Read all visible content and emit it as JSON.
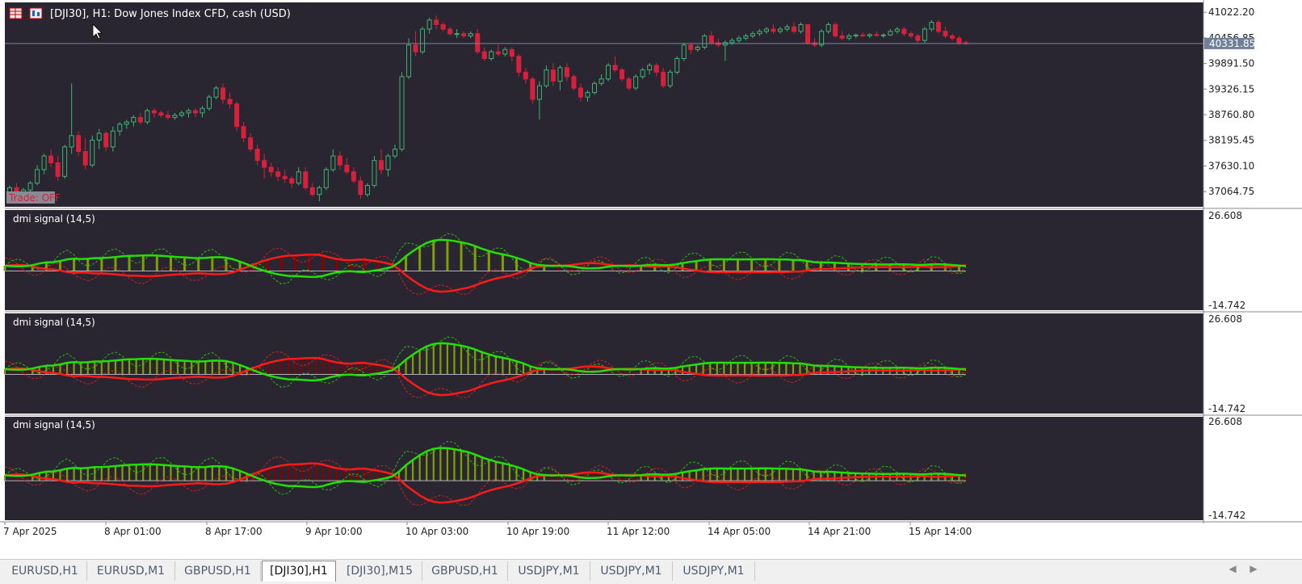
{
  "window": {
    "symbol_title": "[DJI30], H1:  Dow Jones Index CFD, cash (USD)",
    "trade_label": "Trade: OFF"
  },
  "main_chart": {
    "price_axis": [
      "41022.20",
      "40456.85",
      "39891.50",
      "39326.15",
      "38760.80",
      "38195.45",
      "37630.10",
      "37064.75"
    ],
    "current_price": "40331.85",
    "price_min": 36800,
    "price_max": 41150,
    "candles": [
      [
        36950,
        37200,
        36900,
        37150
      ],
      [
        37150,
        37250,
        36800,
        36900
      ],
      [
        36900,
        37150,
        36850,
        37100
      ],
      [
        37100,
        37300,
        37000,
        37250
      ],
      [
        37250,
        37650,
        37200,
        37550
      ],
      [
        37550,
        37900,
        37450,
        37850
      ],
      [
        37850,
        38000,
        37600,
        37700
      ],
      [
        37700,
        37850,
        37300,
        37400
      ],
      [
        37400,
        38100,
        37350,
        38050
      ],
      [
        38050,
        39450,
        37900,
        38300
      ],
      [
        38300,
        38400,
        37850,
        37950
      ],
      [
        37950,
        38250,
        37550,
        37650
      ],
      [
        37650,
        38300,
        37600,
        38200
      ],
      [
        38200,
        38450,
        38000,
        38350
      ],
      [
        38350,
        38400,
        37950,
        38050
      ],
      [
        38050,
        38500,
        37950,
        38400
      ],
      [
        38400,
        38600,
        38300,
        38550
      ],
      [
        38550,
        38650,
        38450,
        38600
      ],
      [
        38600,
        38750,
        38500,
        38700
      ],
      [
        38700,
        38800,
        38550,
        38600
      ],
      [
        38600,
        38900,
        38550,
        38850
      ],
      [
        38850,
        38900,
        38700,
        38800
      ],
      [
        38800,
        38850,
        38700,
        38750
      ],
      [
        38750,
        38850,
        38650,
        38700
      ],
      [
        38700,
        38800,
        38650,
        38750
      ],
      [
        38750,
        38850,
        38700,
        38800
      ],
      [
        38800,
        38900,
        38700,
        38850
      ],
      [
        38850,
        38900,
        38700,
        38800
      ],
      [
        38800,
        38950,
        38700,
        38900
      ],
      [
        38900,
        39200,
        38850,
        39150
      ],
      [
        39150,
        39400,
        39100,
        39350
      ],
      [
        39350,
        39450,
        39000,
        39100
      ],
      [
        39100,
        39250,
        38900,
        39000
      ],
      [
        39000,
        39050,
        38400,
        38500
      ],
      [
        38500,
        38600,
        38150,
        38250
      ],
      [
        38250,
        38350,
        37950,
        38000
      ],
      [
        38000,
        38100,
        37650,
        37750
      ],
      [
        37750,
        37900,
        37350,
        37600
      ],
      [
        37600,
        37700,
        37400,
        37500
      ],
      [
        37500,
        37600,
        37300,
        37400
      ],
      [
        37400,
        37550,
        37250,
        37350
      ],
      [
        37350,
        37400,
        37150,
        37250
      ],
      [
        37250,
        37600,
        37200,
        37500
      ],
      [
        37500,
        37600,
        37100,
        37150
      ],
      [
        37150,
        37250,
        36950,
        37000
      ],
      [
        37000,
        37200,
        36850,
        37150
      ],
      [
        37150,
        37600,
        37100,
        37550
      ],
      [
        37550,
        38000,
        37500,
        37850
      ],
      [
        37850,
        37950,
        37550,
        37650
      ],
      [
        37650,
        37800,
        37450,
        37500
      ],
      [
        37500,
        37600,
        37250,
        37300
      ],
      [
        37300,
        37400,
        36900,
        37000
      ],
      [
        37000,
        37250,
        36950,
        37200
      ],
      [
        37200,
        37850,
        37150,
        37750
      ],
      [
        37750,
        38000,
        37450,
        37550
      ],
      [
        37550,
        37900,
        37400,
        37850
      ],
      [
        37850,
        38100,
        37800,
        38000
      ],
      [
        38000,
        39700,
        37950,
        39600
      ],
      [
        39600,
        40450,
        39550,
        40300
      ],
      [
        40300,
        40600,
        40050,
        40150
      ],
      [
        40150,
        40700,
        40100,
        40650
      ],
      [
        40650,
        40900,
        40550,
        40850
      ],
      [
        40850,
        40950,
        40650,
        40750
      ],
      [
        40750,
        40800,
        40600,
        40650
      ],
      [
        40650,
        40700,
        40500,
        40550
      ],
      [
        40550,
        40650,
        40450,
        40550
      ],
      [
        40550,
        40600,
        40450,
        40500
      ],
      [
        40500,
        40600,
        40450,
        40550
      ],
      [
        40550,
        40650,
        40100,
        40150
      ],
      [
        40150,
        40250,
        39950,
        40000
      ],
      [
        40000,
        40200,
        39950,
        40150
      ],
      [
        40150,
        40300,
        40050,
        40100
      ],
      [
        40100,
        40250,
        40050,
        40200
      ],
      [
        40200,
        40250,
        39950,
        40050
      ],
      [
        40050,
        40100,
        39600,
        39700
      ],
      [
        39700,
        39800,
        39450,
        39550
      ],
      [
        39550,
        39600,
        39000,
        39100
      ],
      [
        39100,
        39500,
        38650,
        39400
      ],
      [
        39400,
        39850,
        39350,
        39750
      ],
      [
        39750,
        39900,
        39400,
        39500
      ],
      [
        39500,
        39850,
        39300,
        39800
      ],
      [
        39800,
        39900,
        39500,
        39600
      ],
      [
        39600,
        39650,
        39300,
        39350
      ],
      [
        39350,
        39450,
        39050,
        39150
      ],
      [
        39150,
        39300,
        39050,
        39250
      ],
      [
        39250,
        39500,
        39200,
        39450
      ],
      [
        39450,
        39650,
        39400,
        39550
      ],
      [
        39550,
        39900,
        39500,
        39850
      ],
      [
        39850,
        40050,
        39700,
        39750
      ],
      [
        39750,
        39800,
        39500,
        39550
      ],
      [
        39550,
        39600,
        39300,
        39350
      ],
      [
        39350,
        39650,
        39300,
        39600
      ],
      [
        39600,
        39800,
        39550,
        39750
      ],
      [
        39750,
        39900,
        39650,
        39850
      ],
      [
        39850,
        39900,
        39600,
        39700
      ],
      [
        39700,
        39800,
        39350,
        39400
      ],
      [
        39400,
        39750,
        39350,
        39700
      ],
      [
        39700,
        40050,
        39650,
        40000
      ],
      [
        40000,
        40350,
        39950,
        40300
      ],
      [
        40300,
        40350,
        40100,
        40200
      ],
      [
        40200,
        40300,
        40150,
        40250
      ],
      [
        40250,
        40550,
        40200,
        40500
      ],
      [
        40500,
        40600,
        40300,
        40350
      ],
      [
        40350,
        40450,
        40250,
        40300
      ],
      [
        40300,
        40400,
        39950,
        40350
      ],
      [
        40350,
        40450,
        40300,
        40400
      ],
      [
        40400,
        40500,
        40350,
        40450
      ],
      [
        40450,
        40550,
        40400,
        40500
      ],
      [
        40500,
        40600,
        40450,
        40550
      ],
      [
        40550,
        40650,
        40500,
        40600
      ],
      [
        40600,
        40700,
        40550,
        40650
      ],
      [
        40650,
        40750,
        40550,
        40600
      ],
      [
        40600,
        40700,
        40550,
        40650
      ],
      [
        40650,
        40750,
        40600,
        40700
      ],
      [
        40700,
        40800,
        40550,
        40600
      ],
      [
        40600,
        40800,
        40550,
        40750
      ],
      [
        40750,
        40750,
        40300,
        40350
      ],
      [
        40350,
        40450,
        40250,
        40300
      ],
      [
        40300,
        40650,
        40250,
        40600
      ],
      [
        40600,
        40800,
        40550,
        40750
      ],
      [
        40750,
        40800,
        40450,
        40500
      ],
      [
        40500,
        40600,
        40400,
        40450
      ],
      [
        40450,
        40550,
        40400,
        40500
      ],
      [
        40500,
        40550,
        40450,
        40520
      ],
      [
        40520,
        40580,
        40470,
        40500
      ],
      [
        40500,
        40560,
        40450,
        40530
      ],
      [
        40530,
        40600,
        40480,
        40510
      ],
      [
        40510,
        40560,
        40460,
        40520
      ],
      [
        40520,
        40650,
        40500,
        40600
      ],
      [
        40600,
        40700,
        40550,
        40650
      ],
      [
        40650,
        40700,
        40500,
        40550
      ],
      [
        40550,
        40600,
        40450,
        40500
      ],
      [
        40500,
        40550,
        40350,
        40400
      ],
      [
        40400,
        40700,
        40350,
        40650
      ],
      [
        40650,
        40850,
        40600,
        40800
      ],
      [
        40800,
        40850,
        40550,
        40600
      ],
      [
        40600,
        40700,
        40450,
        40500
      ],
      [
        40500,
        40550,
        40400,
        40450
      ],
      [
        40450,
        40500,
        40300,
        40350
      ],
      [
        40350,
        40400,
        40300,
        40330
      ]
    ]
  },
  "indicator_panels": [
    {
      "label": "dmi signal (14,5)",
      "axis_top": "26.608",
      "axis_bottom": "-14.742"
    },
    {
      "label": "dmi signal (14,5)",
      "axis_top": "26.608",
      "axis_bottom": "-14.742"
    },
    {
      "label": "dmi signal (14,5)",
      "axis_top": "26.608",
      "axis_bottom": "-14.742"
    }
  ],
  "time_axis": [
    "7 Apr 2025",
    "8 Apr 01:00",
    "8 Apr 17:00",
    "9 Apr 10:00",
    "10 Apr 03:00",
    "10 Apr 19:00",
    "11 Apr 12:00",
    "14 Apr 05:00",
    "14 Apr 21:00",
    "15 Apr 14:00"
  ],
  "tabs": [
    {
      "label": "EURUSD,H1"
    },
    {
      "label": "EURUSD,M1"
    },
    {
      "label": "GBPUSD,H1"
    },
    {
      "label": "[DJI30],H1",
      "active": true
    },
    {
      "label": "[DJI30],M15"
    },
    {
      "label": "GBPUSD,H1"
    },
    {
      "label": "USDJPY,M1"
    },
    {
      "label": "USDJPY,M1"
    },
    {
      "label": "USDJPY,M1"
    }
  ],
  "colors": {
    "chart_bg": "#2a2631",
    "bull": "#3cb371",
    "bear": "#d8203c",
    "green_line": "#22e000",
    "red_line": "#ff1a1a",
    "hist_green": "#7fa000",
    "hist_red": "#8b0000",
    "axis_text": "#1e1e1e"
  },
  "icons": [
    "grid-table-icon",
    "chart-window-icon",
    "mouse-cursor-icon",
    "scroll-left-icon",
    "scroll-right-icon"
  ]
}
